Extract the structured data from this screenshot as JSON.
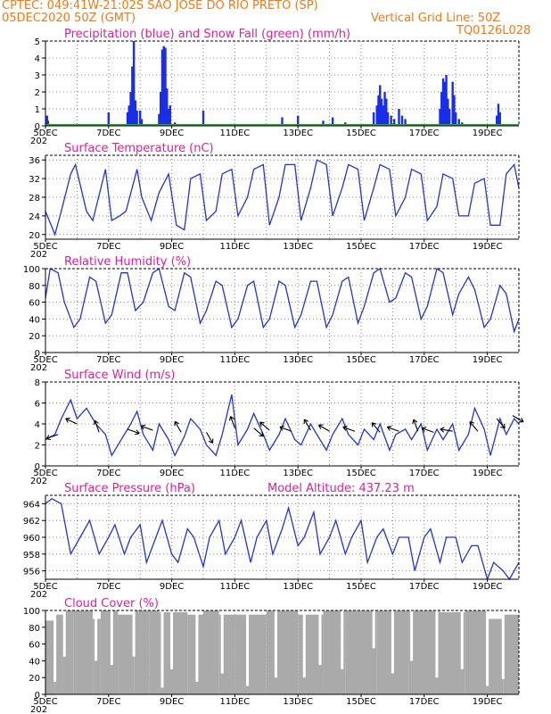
{
  "header": {
    "line1": "CPTEC:   049:41W-21:02S   SAO JOSE DO RIO PRETO (SP)",
    "line2_left": "05DEC2020 50Z (GMT)",
    "line2_right": "Vertical Grid Line: 50Z",
    "line3_right": "TQ0126L028"
  },
  "colors": {
    "header": "#f07a1a",
    "title": "#e0209a",
    "line": "#2233dd",
    "precip": "#1a2ee6",
    "snow": "#22aa22",
    "cloud": "#aaaaaa"
  },
  "xaxis": {
    "days": 15,
    "ticks": [
      {
        "day": 0,
        "label": "5DEC"
      },
      {
        "day": 2,
        "label": "7DEC"
      },
      {
        "day": 4,
        "label": "9DEC"
      },
      {
        "day": 6,
        "label": "11DEC"
      },
      {
        "day": 8,
        "label": "13DEC"
      },
      {
        "day": 10,
        "label": "15DEC"
      },
      {
        "day": 12,
        "label": "17DEC"
      },
      {
        "day": 14,
        "label": "19DEC"
      }
    ],
    "under_label": "202"
  },
  "chart_data": [
    {
      "type": "bar",
      "title": "Precipitation (blue) and Snow Fall (green) (mm/h)",
      "ylim": [
        0,
        5
      ],
      "yticks": [
        0,
        1,
        2,
        3,
        4,
        5
      ],
      "series": [
        {
          "name": "Precipitation",
          "points": [
            [
              0.02,
              0.2
            ],
            [
              0.05,
              0.6
            ],
            [
              0.08,
              0.3
            ],
            [
              1.1,
              0.1
            ],
            [
              2.0,
              0.8
            ],
            [
              2.6,
              0.8
            ],
            [
              2.65,
              1.2
            ],
            [
              2.7,
              2.0
            ],
            [
              2.75,
              3.5
            ],
            [
              2.8,
              5.0
            ],
            [
              2.85,
              1.5
            ],
            [
              2.9,
              0.9
            ],
            [
              3.0,
              0.9
            ],
            [
              3.05,
              0.4
            ],
            [
              3.6,
              0.7
            ],
            [
              3.65,
              2.0
            ],
            [
              3.7,
              4.5
            ],
            [
              3.75,
              4.7
            ],
            [
              3.8,
              4.6
            ],
            [
              3.85,
              2.2
            ],
            [
              3.9,
              1.0
            ],
            [
              3.95,
              1.2
            ],
            [
              4.1,
              0.2
            ],
            [
              5.0,
              0.9
            ],
            [
              7.5,
              0.5
            ],
            [
              8.0,
              0.6
            ],
            [
              8.8,
              0.3
            ],
            [
              9.1,
              0.5
            ],
            [
              9.5,
              0.2
            ],
            [
              10.4,
              0.8
            ],
            [
              10.5,
              1.2
            ],
            [
              10.55,
              1.8
            ],
            [
              10.6,
              2.4
            ],
            [
              10.65,
              1.6
            ],
            [
              10.7,
              1.2
            ],
            [
              10.75,
              2.0
            ],
            [
              10.8,
              1.6
            ],
            [
              10.85,
              0.8
            ],
            [
              10.95,
              0.6
            ],
            [
              11.05,
              0.4
            ],
            [
              11.2,
              1.0
            ],
            [
              11.3,
              0.6
            ],
            [
              11.4,
              0.4
            ],
            [
              12.5,
              1.0
            ],
            [
              12.55,
              2.0
            ],
            [
              12.6,
              2.8
            ],
            [
              12.65,
              2.6
            ],
            [
              12.7,
              3.0
            ],
            [
              12.75,
              1.6
            ],
            [
              12.8,
              1.0
            ],
            [
              12.9,
              2.6
            ],
            [
              12.95,
              1.8
            ],
            [
              13.0,
              0.8
            ],
            [
              13.1,
              0.4
            ],
            [
              13.2,
              0.2
            ],
            [
              14.3,
              0.6
            ],
            [
              14.35,
              1.3
            ],
            [
              14.4,
              0.8
            ]
          ]
        },
        {
          "name": "Snow Fall",
          "values": []
        }
      ]
    },
    {
      "type": "line",
      "title": "Surface Temperature (nC)",
      "ylim": [
        19,
        37
      ],
      "yticks": [
        20,
        24,
        28,
        32,
        36
      ],
      "x": [
        0,
        0.3,
        0.5,
        0.8,
        0.95,
        1.3,
        1.5,
        1.9,
        2.1,
        2.35,
        2.55,
        2.9,
        3.05,
        3.35,
        3.6,
        3.9,
        4.15,
        4.4,
        4.6,
        4.9,
        5.1,
        5.4,
        5.6,
        5.9,
        6.1,
        6.4,
        6.6,
        6.9,
        7.1,
        7.4,
        7.6,
        7.9,
        8.1,
        8.4,
        8.6,
        8.9,
        9.1,
        9.4,
        9.6,
        9.9,
        10.1,
        10.4,
        10.6,
        10.9,
        11.1,
        11.4,
        11.6,
        11.9,
        12.1,
        12.4,
        12.6,
        12.9,
        13.1,
        13.4,
        13.6,
        13.9,
        14.1,
        14.4,
        14.6,
        14.85,
        15.0
      ],
      "values": [
        25,
        20,
        25,
        33,
        35,
        25,
        23,
        34,
        23,
        24,
        25,
        34,
        28,
        23,
        29,
        33,
        22,
        21,
        32,
        33,
        23,
        25,
        33,
        34,
        24,
        28,
        34,
        35,
        22,
        28,
        35,
        35,
        23,
        30,
        36,
        35,
        24,
        30,
        35,
        34,
        23,
        30,
        35,
        34,
        24,
        28,
        34,
        33,
        23,
        26,
        33,
        32,
        24,
        24,
        31,
        32,
        22,
        22,
        33,
        35,
        30
      ]
    },
    {
      "type": "line",
      "title": "Relative Humidity (%)",
      "ylim": [
        0,
        100
      ],
      "yticks": [
        0,
        20,
        40,
        60,
        80,
        100
      ],
      "x": [
        0,
        0.15,
        0.4,
        0.6,
        0.9,
        1.1,
        1.4,
        1.6,
        1.9,
        2.1,
        2.4,
        2.6,
        2.85,
        3.1,
        3.4,
        3.6,
        3.9,
        4.1,
        4.4,
        4.6,
        4.9,
        5.1,
        5.4,
        5.6,
        5.9,
        6.1,
        6.4,
        6.6,
        6.9,
        7.1,
        7.4,
        7.6,
        7.9,
        8.1,
        8.4,
        8.6,
        8.9,
        9.1,
        9.4,
        9.6,
        9.9,
        10.1,
        10.4,
        10.6,
        10.9,
        11.1,
        11.4,
        11.6,
        11.9,
        12.1,
        12.4,
        12.6,
        12.9,
        13.1,
        13.4,
        13.6,
        13.9,
        14.1,
        14.4,
        14.6,
        14.85,
        15.0
      ],
      "values": [
        65,
        100,
        95,
        60,
        30,
        40,
        90,
        85,
        35,
        45,
        95,
        95,
        50,
        60,
        95,
        100,
        55,
        50,
        95,
        90,
        35,
        50,
        85,
        80,
        30,
        40,
        80,
        85,
        30,
        40,
        85,
        80,
        30,
        45,
        85,
        85,
        30,
        45,
        85,
        90,
        35,
        55,
        95,
        100,
        60,
        65,
        95,
        90,
        40,
        55,
        100,
        95,
        45,
        70,
        90,
        75,
        30,
        40,
        80,
        70,
        25,
        40
      ]
    },
    {
      "type": "line",
      "title": "Surface Wind (m/s)",
      "ylim": [
        0,
        8
      ],
      "yticks": [
        0,
        2,
        4,
        6,
        8
      ],
      "x": [
        0,
        0.3,
        0.5,
        0.8,
        1.0,
        1.3,
        1.6,
        1.9,
        2.1,
        2.4,
        2.7,
        2.9,
        3.1,
        3.4,
        3.6,
        3.9,
        4.1,
        4.4,
        4.6,
        4.9,
        5.1,
        5.4,
        5.6,
        5.9,
        6.1,
        6.4,
        6.6,
        6.9,
        7.1,
        7.4,
        7.6,
        7.9,
        8.1,
        8.4,
        8.6,
        8.9,
        9.1,
        9.4,
        9.6,
        9.9,
        10.1,
        10.4,
        10.6,
        10.9,
        11.1,
        11.4,
        11.6,
        11.9,
        12.1,
        12.4,
        12.6,
        12.9,
        13.1,
        13.4,
        13.6,
        13.9,
        14.1,
        14.4,
        14.6,
        14.85,
        15.0
      ],
      "values": [
        2.5,
        3.0,
        4.5,
        6.3,
        4.5,
        5.5,
        4.0,
        3.0,
        1.0,
        2.5,
        4.0,
        5.2,
        3.0,
        1.5,
        4.0,
        2.5,
        1.0,
        2.8,
        4.5,
        3.5,
        2.0,
        1.0,
        3.0,
        6.8,
        2.0,
        3.5,
        5.0,
        3.0,
        1.5,
        3.0,
        4.5,
        2.5,
        2.0,
        4.0,
        3.0,
        1.5,
        3.0,
        4.5,
        3.0,
        2.0,
        3.5,
        2.5,
        4.0,
        1.5,
        3.0,
        3.5,
        2.5,
        4.0,
        1.5,
        3.5,
        2.5,
        4.0,
        1.5,
        3.0,
        5.5,
        3.5,
        1.0,
        4.5,
        3.0,
        4.5,
        4.0
      ],
      "arrows": [
        [
          0.4,
          3.0,
          160
        ],
        [
          1.0,
          4.0,
          205
        ],
        [
          1.7,
          3.2,
          250
        ],
        [
          2.6,
          3.5,
          20
        ],
        [
          3.4,
          3.4,
          200
        ],
        [
          4.3,
          3.2,
          240
        ],
        [
          5.1,
          3.2,
          60
        ],
        [
          6.0,
          3.6,
          250
        ],
        [
          6.6,
          3.6,
          40
        ],
        [
          7.1,
          3.4,
          220
        ],
        [
          7.8,
          3.3,
          200
        ],
        [
          8.4,
          3.4,
          240
        ],
        [
          9.0,
          3.3,
          210
        ],
        [
          9.8,
          3.3,
          200
        ],
        [
          10.6,
          3.2,
          230
        ],
        [
          11.2,
          3.3,
          200
        ],
        [
          11.8,
          3.3,
          250
        ],
        [
          12.3,
          3.2,
          200
        ],
        [
          12.9,
          3.3,
          190
        ],
        [
          13.7,
          3.3,
          230
        ],
        [
          14.3,
          4.5,
          50
        ],
        [
          14.8,
          4.8,
          30
        ]
      ]
    },
    {
      "type": "line",
      "title": "Surface Pressure (hPa)",
      "ylim": [
        955,
        965
      ],
      "yticks": [
        956,
        958,
        960,
        962,
        964
      ],
      "x": [
        0,
        0.2,
        0.5,
        0.8,
        1.1,
        1.4,
        1.7,
        2.0,
        2.2,
        2.5,
        2.7,
        3.0,
        3.2,
        3.5,
        3.7,
        4.0,
        4.2,
        4.5,
        4.7,
        5.0,
        5.2,
        5.5,
        5.7,
        6.0,
        6.2,
        6.5,
        6.7,
        7.0,
        7.2,
        7.5,
        7.7,
        8.0,
        8.2,
        8.5,
        8.7,
        9.0,
        9.2,
        9.5,
        9.7,
        10.0,
        10.2,
        10.5,
        10.7,
        11.0,
        11.2,
        11.5,
        11.7,
        12.0,
        12.2,
        12.5,
        12.7,
        13.0,
        13.2,
        13.5,
        13.7,
        14.0,
        14.2,
        14.5,
        14.7,
        15.0
      ],
      "values": [
        964,
        964.6,
        964,
        958,
        960,
        962,
        958,
        960,
        961.5,
        958,
        960,
        961.5,
        957,
        960,
        962,
        958,
        957,
        961,
        960,
        956.5,
        960,
        962,
        958,
        960,
        962,
        957,
        960,
        962,
        958,
        961,
        963.5,
        959,
        960,
        963,
        958,
        960,
        962,
        958,
        960,
        962,
        957,
        960,
        961,
        958,
        960,
        960,
        956,
        960,
        961,
        957,
        960,
        960,
        957,
        959,
        959,
        955,
        957,
        956,
        955,
        957
      ]
    },
    {
      "type": "bar",
      "title": "Cloud Cover (%)",
      "ylim": [
        0,
        100
      ],
      "yticks": [
        0,
        20,
        40,
        60,
        80,
        100
      ],
      "segments": [
        [
          0,
          0.3,
          88
        ],
        [
          0.3,
          0.55,
          95
        ],
        [
          0.55,
          0.9,
          100
        ],
        [
          0.9,
          1.5,
          100
        ],
        [
          1.5,
          1.75,
          90
        ],
        [
          1.75,
          2.3,
          100
        ],
        [
          2.3,
          2.8,
          95
        ],
        [
          2.8,
          3.3,
          100
        ],
        [
          3.3,
          3.6,
          100
        ],
        [
          3.6,
          4.5,
          98
        ],
        [
          4.5,
          5.0,
          95
        ],
        [
          5.0,
          5.5,
          100
        ],
        [
          5.5,
          6.0,
          95
        ],
        [
          6.0,
          7.0,
          95
        ],
        [
          7.0,
          8.0,
          100
        ],
        [
          8.0,
          8.8,
          95
        ],
        [
          8.8,
          9.5,
          100
        ],
        [
          9.5,
          10.5,
          100
        ],
        [
          10.5,
          11.5,
          100
        ],
        [
          11.5,
          12.5,
          100
        ],
        [
          12.5,
          13.3,
          98
        ],
        [
          13.3,
          14.0,
          100
        ],
        [
          14.0,
          14.5,
          90
        ],
        [
          14.5,
          15.0,
          95
        ]
      ],
      "dips": [
        [
          0.3,
          15
        ],
        [
          0.6,
          45
        ],
        [
          1.6,
          40
        ],
        [
          2.1,
          35
        ],
        [
          2.8,
          45
        ],
        [
          3.7,
          8
        ],
        [
          4.0,
          30
        ],
        [
          4.8,
          15
        ],
        [
          5.6,
          25
        ],
        [
          6.4,
          10
        ],
        [
          7.3,
          20
        ],
        [
          8.2,
          20
        ],
        [
          8.7,
          35
        ],
        [
          9.4,
          30
        ],
        [
          10.4,
          55
        ],
        [
          11.0,
          25
        ],
        [
          11.6,
          40
        ],
        [
          12.4,
          20
        ],
        [
          13.2,
          30
        ],
        [
          14.0,
          10
        ],
        [
          14.5,
          18
        ]
      ]
    }
  ],
  "panels": [
    {
      "title_extra": ""
    },
    {
      "title_extra": ""
    },
    {
      "title_extra": ""
    },
    {
      "title_extra": ""
    },
    {
      "title_extra": "Model Altitude: 437.23 m"
    },
    {
      "title_extra": ""
    }
  ]
}
